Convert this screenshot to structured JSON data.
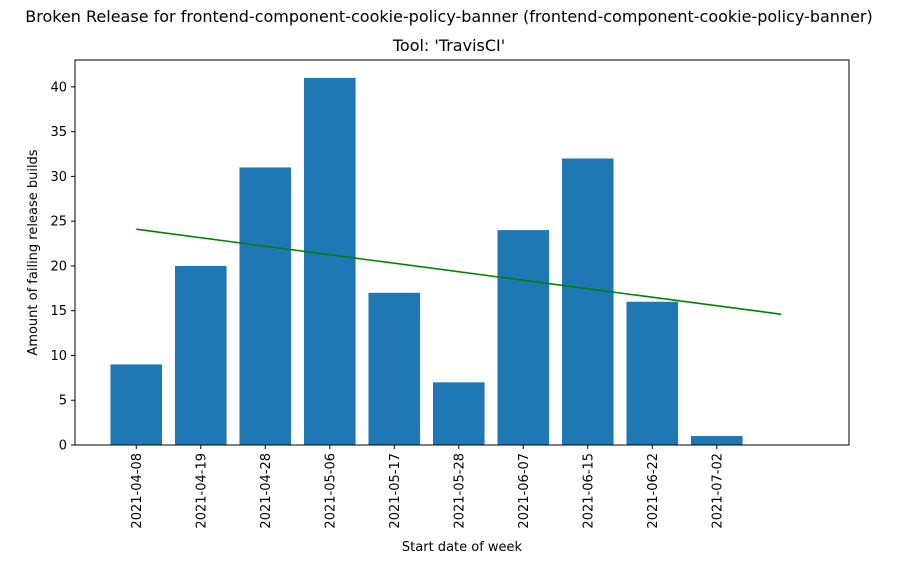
{
  "chart_data": {
    "type": "bar",
    "title": "Broken Release for frontend-component-cookie-policy-banner (frontend-component-cookie-policy-banner)",
    "subtitle": "Tool: 'TravisCI'",
    "xlabel": "Start date of week",
    "ylabel": "Amount of failing release builds",
    "categories": [
      "2021-04-08",
      "2021-04-19",
      "2021-04-28",
      "2021-05-06",
      "2021-05-17",
      "2021-05-28",
      "2021-06-07",
      "2021-06-15",
      "2021-06-22",
      "2021-07-02"
    ],
    "values": [
      9,
      20,
      31,
      41,
      17,
      7,
      24,
      32,
      16,
      1
    ],
    "ylim": [
      0,
      43
    ],
    "yticks": [
      0,
      5,
      10,
      15,
      20,
      25,
      30,
      35,
      40
    ],
    "bar_color": "#1f77b4",
    "trend_line": {
      "color": "#008000",
      "start": 24.1,
      "end": 14.6
    },
    "grid": false,
    "legend": "none"
  }
}
